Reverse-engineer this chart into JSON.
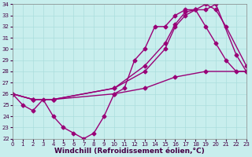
{
  "xlabel": "Windchill (Refroidissement éolien,°C)",
  "xlim": [
    0,
    23
  ],
  "ylim": [
    22,
    34
  ],
  "xticks": [
    0,
    1,
    2,
    3,
    4,
    5,
    6,
    7,
    8,
    9,
    10,
    11,
    12,
    13,
    14,
    15,
    16,
    17,
    18,
    19,
    20,
    21,
    22,
    23
  ],
  "yticks": [
    22,
    23,
    24,
    25,
    26,
    27,
    28,
    29,
    30,
    31,
    32,
    33,
    34
  ],
  "bg_color": "#c8eeed",
  "grid_color": "#aadddd",
  "line_color": "#990077",
  "lines": [
    {
      "x": [
        0,
        1,
        2,
        3,
        4,
        5,
        6,
        7,
        8,
        9,
        10,
        11,
        12,
        13,
        14,
        15,
        16,
        17,
        18,
        19,
        20,
        21,
        22,
        23
      ],
      "y": [
        26,
        25,
        24.5,
        25.5,
        24,
        23,
        22.5,
        22,
        22.5,
        24,
        26,
        26.5,
        29,
        30,
        32,
        32,
        33,
        33.5,
        33.5,
        32,
        30.5,
        29,
        28,
        28
      ]
    },
    {
      "x": [
        0,
        2,
        4,
        10,
        13,
        16,
        19,
        23
      ],
      "y": [
        26,
        25.5,
        25.5,
        26,
        26.5,
        27.5,
        28,
        28
      ]
    },
    {
      "x": [
        0,
        2,
        4,
        10,
        13,
        15,
        16,
        17,
        18,
        19,
        20,
        21,
        23
      ],
      "y": [
        26,
        25.5,
        25.5,
        26.5,
        28.5,
        30.5,
        32.2,
        33.3,
        33.5,
        34,
        33.5,
        32,
        28.5
      ]
    },
    {
      "x": [
        0,
        2,
        4,
        10,
        13,
        15,
        16,
        17,
        18,
        19,
        20,
        22,
        23
      ],
      "y": [
        26,
        25.5,
        25.5,
        26.5,
        28,
        30,
        32,
        33,
        33.5,
        33.5,
        34,
        29.5,
        28
      ]
    }
  ],
  "marker": "D",
  "markersize": 2.5,
  "linewidth": 1.0,
  "tick_fontsize": 5.0,
  "xlabel_fontsize": 6.5
}
